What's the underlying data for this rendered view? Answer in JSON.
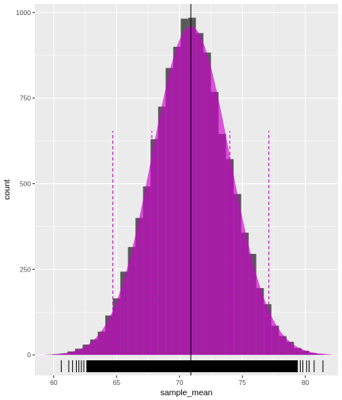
{
  "chart_data": {
    "type": "bar",
    "xlabel": "sample_mean",
    "ylabel": "count",
    "xlim": [
      58.5,
      82.6
    ],
    "ylim": [
      -60,
      1025
    ],
    "x_ticks": [
      60,
      65,
      70,
      75,
      80
    ],
    "y_ticks": [
      0,
      250,
      500,
      750,
      1000
    ],
    "grid": true,
    "panel_color": "#ebebeb",
    "histogram": {
      "color": "#595959",
      "binwidth": 0.6,
      "bins": [
        {
          "x0": 59.9,
          "x1": 60.5,
          "count": 2
        },
        {
          "x0": 60.5,
          "x1": 61.1,
          "count": 4
        },
        {
          "x0": 61.1,
          "x1": 61.7,
          "count": 10
        },
        {
          "x0": 61.7,
          "x1": 62.3,
          "count": 18
        },
        {
          "x0": 62.3,
          "x1": 62.9,
          "count": 30
        },
        {
          "x0": 62.9,
          "x1": 63.5,
          "count": 45
        },
        {
          "x0": 63.5,
          "x1": 64.1,
          "count": 68
        },
        {
          "x0": 64.1,
          "x1": 64.7,
          "count": 115
        },
        {
          "x0": 64.7,
          "x1": 65.3,
          "count": 165
        },
        {
          "x0": 65.3,
          "x1": 65.9,
          "count": 243
        },
        {
          "x0": 65.9,
          "x1": 66.5,
          "count": 315
        },
        {
          "x0": 66.5,
          "x1": 67.1,
          "count": 400
        },
        {
          "x0": 67.1,
          "x1": 67.7,
          "count": 492
        },
        {
          "x0": 67.7,
          "x1": 68.3,
          "count": 630
        },
        {
          "x0": 68.3,
          "x1": 68.9,
          "count": 725
        },
        {
          "x0": 68.9,
          "x1": 69.5,
          "count": 838
        },
        {
          "x0": 69.5,
          "x1": 70.1,
          "count": 900
        },
        {
          "x0": 70.1,
          "x1": 70.7,
          "count": 982
        },
        {
          "x0": 70.7,
          "x1": 71.3,
          "count": 985
        },
        {
          "x0": 71.3,
          "x1": 71.9,
          "count": 940
        },
        {
          "x0": 71.9,
          "x1": 72.5,
          "count": 883
        },
        {
          "x0": 72.5,
          "x1": 73.1,
          "count": 768
        },
        {
          "x0": 73.1,
          "x1": 73.7,
          "count": 645
        },
        {
          "x0": 73.7,
          "x1": 74.3,
          "count": 572
        },
        {
          "x0": 74.3,
          "x1": 74.9,
          "count": 470
        },
        {
          "x0": 74.9,
          "x1": 75.5,
          "count": 357
        },
        {
          "x0": 75.5,
          "x1": 76.1,
          "count": 295
        },
        {
          "x0": 76.1,
          "x1": 76.7,
          "count": 195
        },
        {
          "x0": 76.7,
          "x1": 77.3,
          "count": 148
        },
        {
          "x0": 77.3,
          "x1": 77.9,
          "count": 85
        },
        {
          "x0": 77.9,
          "x1": 78.5,
          "count": 55
        },
        {
          "x0": 78.5,
          "x1": 79.1,
          "count": 38
        },
        {
          "x0": 79.1,
          "x1": 79.7,
          "count": 20
        },
        {
          "x0": 79.7,
          "x1": 80.3,
          "count": 12
        },
        {
          "x0": 80.3,
          "x1": 80.9,
          "count": 5
        },
        {
          "x0": 80.9,
          "x1": 81.5,
          "count": 2
        }
      ]
    },
    "normal_curve": {
      "color": "#cc00cc",
      "opacity": 0.65,
      "mean": 70.9,
      "sd": 3.1,
      "peak": 960
    },
    "dashed_lines": {
      "color": "#cc00cc",
      "x": [
        64.7,
        67.8,
        74.0,
        77.1
      ]
    },
    "mean_line": {
      "x": 70.9,
      "color": "#000000"
    },
    "rug": {
      "color": "#000000",
      "dense_range": [
        62.6,
        79.4
      ],
      "x": [
        60.6,
        61.2,
        61.5,
        61.8,
        62.0,
        62.2,
        62.4,
        79.6,
        79.8,
        80.1,
        80.3,
        80.7,
        81.4
      ]
    }
  }
}
